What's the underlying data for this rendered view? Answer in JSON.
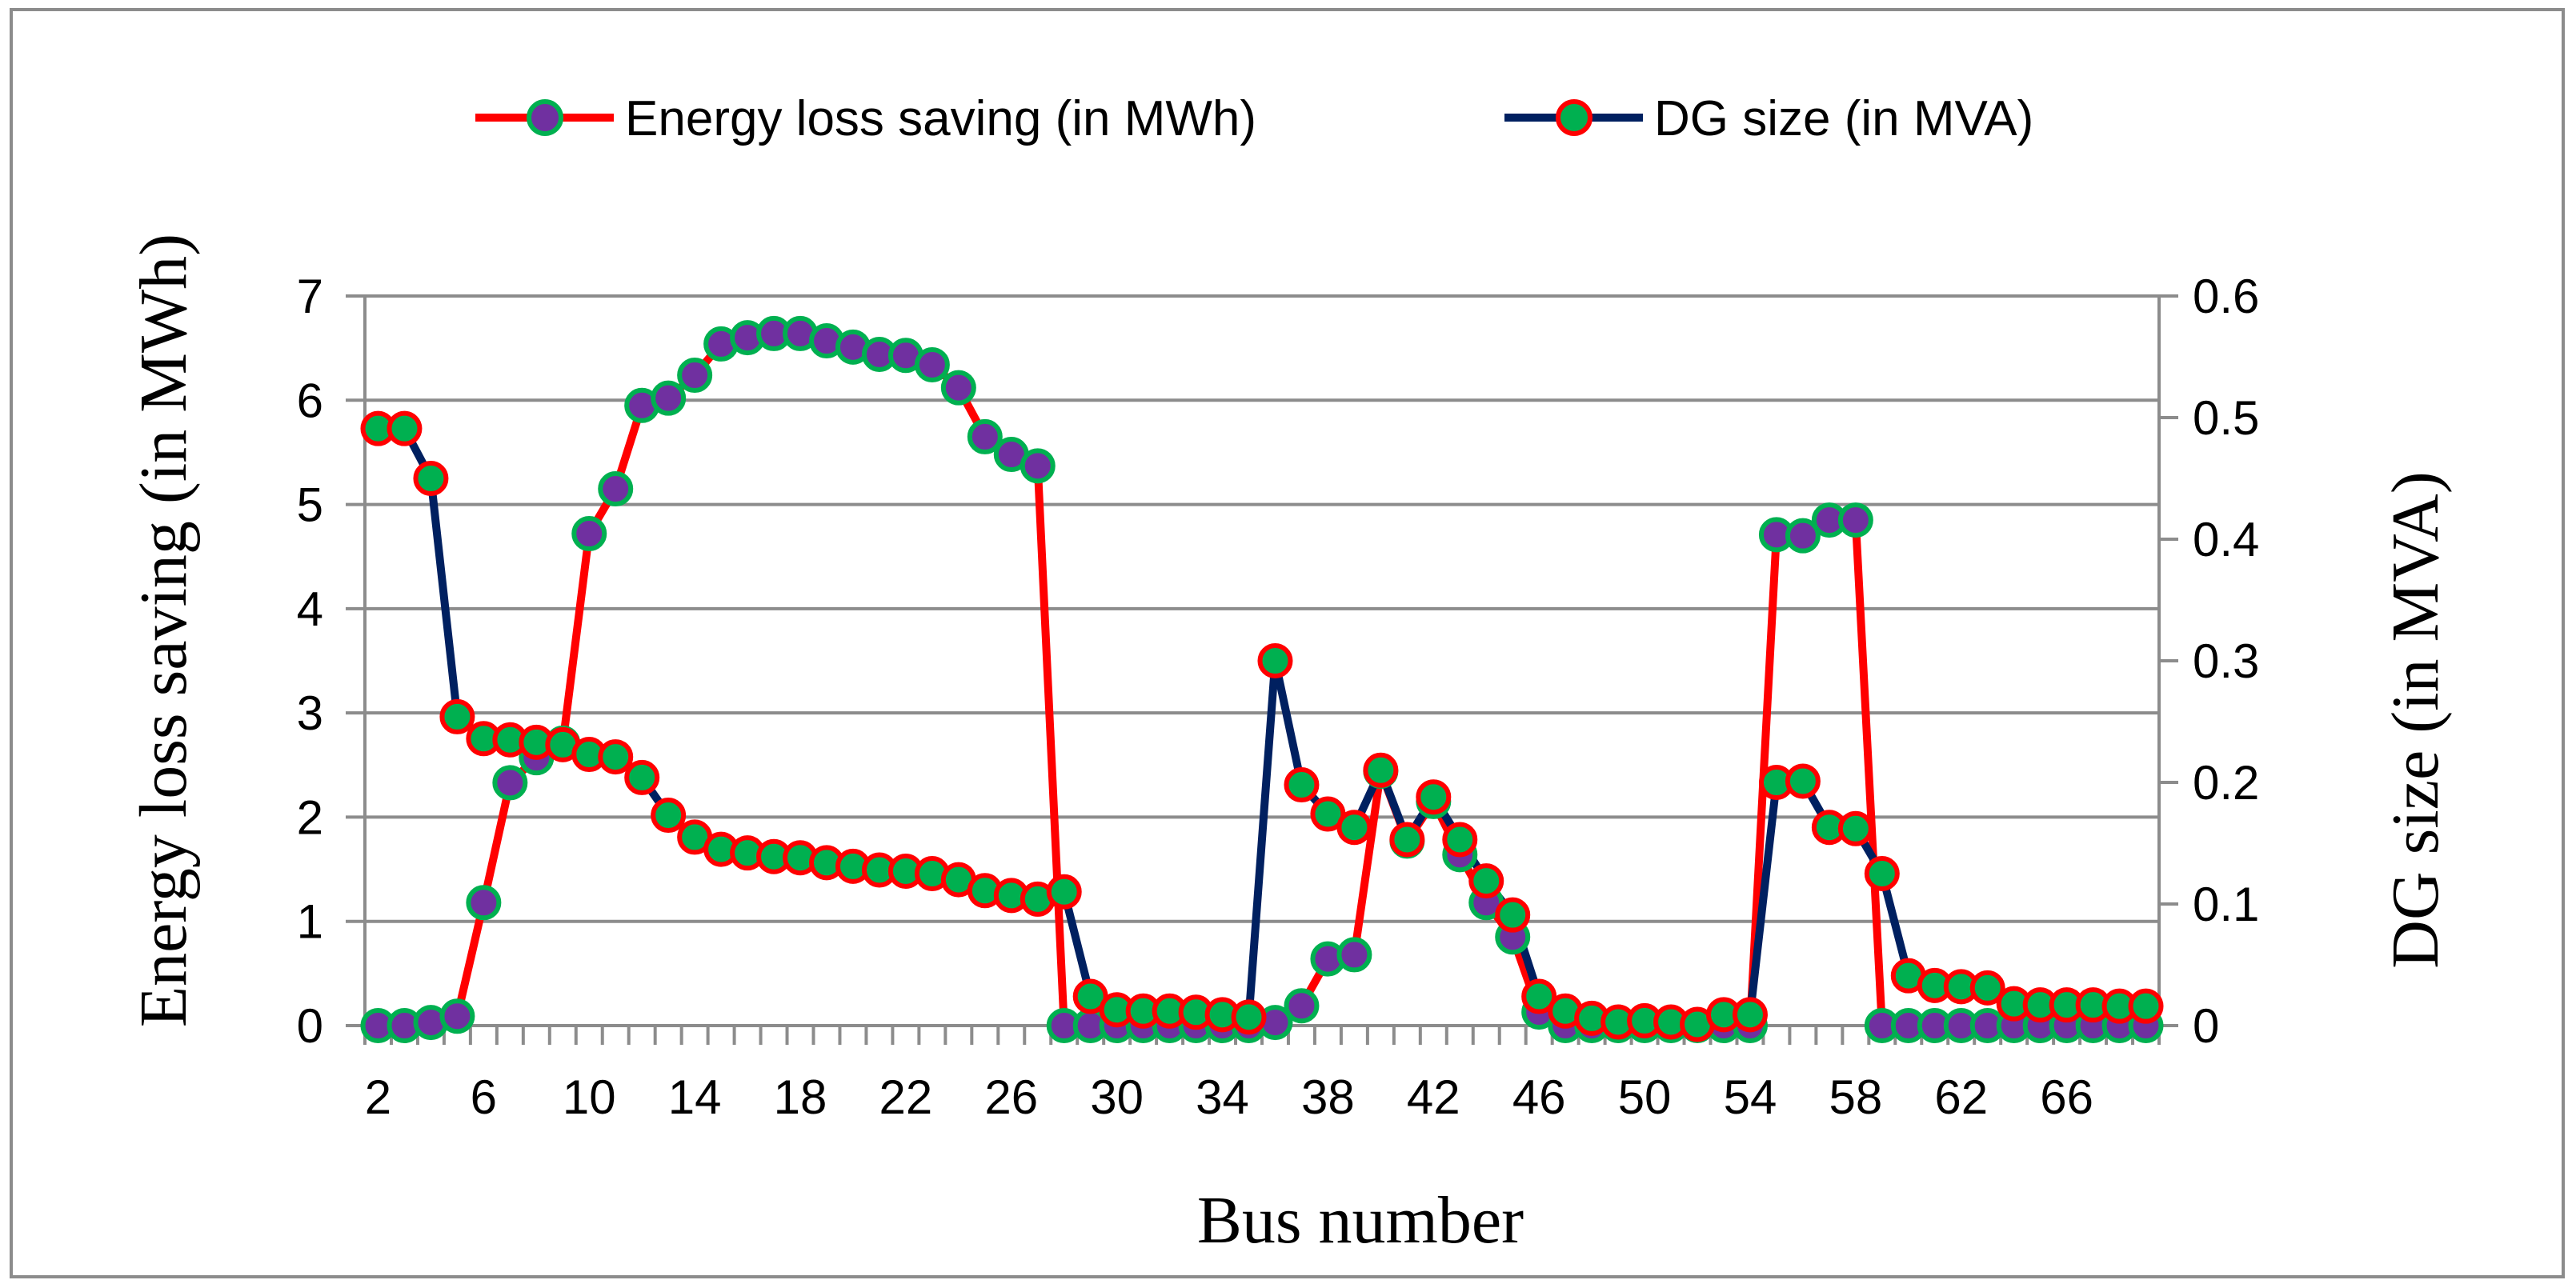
{
  "chart_data": {
    "type": "line",
    "title": "",
    "xlabel": "Bus number",
    "ylabel": "Energy loss saving (in MWh)",
    "y2label": "DG size (in MVA)",
    "legend_position": "top-center",
    "grid": true,
    "ylim": [
      0,
      7
    ],
    "y2lim": [
      0,
      0.6
    ],
    "yticks": [
      "0",
      "1",
      "2",
      "3",
      "4",
      "5",
      "6",
      "7"
    ],
    "y2ticks": [
      "0",
      "0.1",
      "0.2",
      "0.3",
      "0.4",
      "0.5",
      "0.6"
    ],
    "xticklabels": [
      "2",
      "6",
      "10",
      "14",
      "18",
      "22",
      "26",
      "30",
      "34",
      "38",
      "42",
      "46",
      "50",
      "54",
      "58",
      "62",
      "66"
    ],
    "x": [
      2,
      3,
      4,
      5,
      6,
      7,
      8,
      9,
      10,
      11,
      12,
      13,
      14,
      15,
      16,
      17,
      18,
      19,
      20,
      21,
      22,
      23,
      24,
      25,
      26,
      27,
      28,
      29,
      30,
      31,
      32,
      33,
      34,
      35,
      36,
      37,
      38,
      39,
      40,
      41,
      42,
      43,
      44,
      45,
      46,
      47,
      48,
      49,
      50,
      51,
      52,
      53,
      54,
      55,
      56,
      57,
      58,
      59,
      60,
      61,
      62,
      63,
      64,
      65,
      66,
      67,
      68,
      69
    ],
    "series": [
      {
        "name": "Energy loss saving (in MWh)",
        "axis": "left",
        "line_color": "#ff0000",
        "marker_fill": "#7030a0",
        "marker_edge": "#00b050",
        "values": [
          0.0,
          0.0,
          0.03,
          0.09,
          1.18,
          2.33,
          2.57,
          2.71,
          4.72,
          5.15,
          5.95,
          6.02,
          6.24,
          6.54,
          6.6,
          6.64,
          6.64,
          6.57,
          6.51,
          6.44,
          6.43,
          6.34,
          6.12,
          5.65,
          5.48,
          5.37,
          0.0,
          0.0,
          0.0,
          0.0,
          0.0,
          0.0,
          0.0,
          0.0,
          0.03,
          0.19,
          0.64,
          0.68,
          2.44,
          1.77,
          2.15,
          1.64,
          1.18,
          0.85,
          0.13,
          0.0,
          0.0,
          0.0,
          0.0,
          0.0,
          0.0,
          0.0,
          0.0,
          4.71,
          4.7,
          4.85,
          4.85,
          0.0,
          0.0,
          0.0,
          0.0,
          0.0,
          0.0,
          0.0,
          0.0,
          0.0,
          0.0,
          0.0
        ]
      },
      {
        "name": "DG size (in MVA)",
        "axis": "right",
        "line_color": "#002060",
        "marker_fill": "#00b050",
        "marker_edge": "#ff0000",
        "values": [
          0.491,
          0.491,
          0.45,
          0.254,
          0.236,
          0.235,
          0.233,
          0.231,
          0.223,
          0.221,
          0.204,
          0.173,
          0.155,
          0.145,
          0.142,
          0.139,
          0.138,
          0.134,
          0.131,
          0.128,
          0.127,
          0.125,
          0.12,
          0.111,
          0.107,
          0.104,
          0.11,
          0.024,
          0.013,
          0.012,
          0.012,
          0.011,
          0.009,
          0.007,
          0.3,
          0.198,
          0.174,
          0.163,
          0.21,
          0.153,
          0.188,
          0.153,
          0.119,
          0.091,
          0.024,
          0.012,
          0.006,
          0.003,
          0.004,
          0.003,
          0.001,
          0.009,
          0.009,
          0.2,
          0.201,
          0.163,
          0.162,
          0.125,
          0.041,
          0.033,
          0.032,
          0.031,
          0.018,
          0.017,
          0.017,
          0.017,
          0.016,
          0.016
        ]
      }
    ]
  }
}
